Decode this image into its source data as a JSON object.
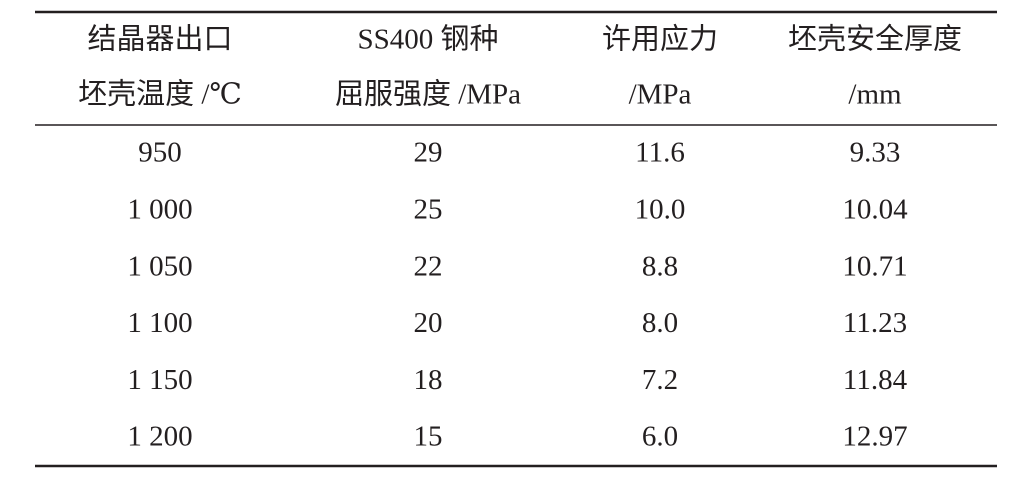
{
  "table": {
    "header": [
      [
        "结晶器出口",
        "坯壳温度 /℃"
      ],
      [
        "SS400 钢种",
        "屈服强度 /MPa"
      ],
      [
        "许用应力",
        "/MPa"
      ],
      [
        "坯壳安全厚度",
        "/mm"
      ]
    ],
    "rows": [
      [
        "950",
        "29",
        "11.6",
        "9.33"
      ],
      [
        "1 000",
        "25",
        "10.0",
        "10.04"
      ],
      [
        "1 050",
        "22",
        "8.8",
        "10.71"
      ],
      [
        "1 100",
        "20",
        "8.0",
        "11.23"
      ],
      [
        "1 150",
        "18",
        "7.2",
        "11.84"
      ],
      [
        "1 200",
        "15",
        "6.0",
        "12.97"
      ]
    ]
  }
}
